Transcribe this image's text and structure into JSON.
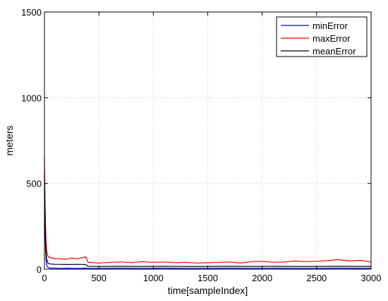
{
  "chart_data": {
    "type": "line",
    "xlabel": "time[sampleIndex]",
    "ylabel": "meters",
    "xlim": [
      0,
      3000
    ],
    "ylim": [
      0,
      1500
    ],
    "xticks": [
      0,
      500,
      1000,
      1500,
      2000,
      2500,
      3000
    ],
    "yticks": [
      0,
      500,
      1000,
      1500
    ],
    "grid": true,
    "legend_position": "top-right",
    "series": [
      {
        "name": "minError",
        "color": "#0000ff",
        "x": [
          0,
          5,
          10,
          15,
          20,
          30,
          40,
          60,
          100,
          150,
          200,
          300,
          380,
          400,
          500,
          700,
          900,
          1100,
          1300,
          1500,
          1700,
          1900,
          2100,
          2300,
          2500,
          2700,
          2900,
          3000
        ],
        "y": [
          460,
          250,
          120,
          55,
          25,
          12,
          8,
          6,
          6,
          5,
          6,
          5,
          6,
          5,
          5,
          6,
          5,
          6,
          5,
          5,
          6,
          5,
          6,
          5,
          5,
          6,
          5,
          6
        ]
      },
      {
        "name": "maxError",
        "color": "#ff0000",
        "x": [
          0,
          5,
          10,
          15,
          20,
          30,
          40,
          60,
          100,
          150,
          200,
          250,
          300,
          350,
          380,
          400,
          450,
          500,
          600,
          700,
          800,
          900,
          1000,
          1100,
          1200,
          1300,
          1400,
          1500,
          1600,
          1700,
          1800,
          1900,
          2000,
          2100,
          2200,
          2300,
          2400,
          2500,
          2600,
          2700,
          2800,
          2900,
          3000
        ],
        "y": [
          650,
          420,
          260,
          160,
          110,
          80,
          70,
          66,
          62,
          60,
          58,
          65,
          60,
          68,
          72,
          40,
          38,
          36,
          40,
          42,
          38,
          44,
          40,
          42,
          38,
          40,
          36,
          38,
          40,
          42,
          36,
          44,
          46,
          40,
          42,
          48,
          44,
          46,
          50,
          56,
          48,
          52,
          42
        ]
      },
      {
        "name": "meanError",
        "color": "#000000",
        "x": [
          0,
          5,
          10,
          15,
          20,
          30,
          40,
          60,
          100,
          150,
          200,
          300,
          380,
          400,
          500,
          700,
          900,
          1100,
          1300,
          1500,
          1700,
          1900,
          2100,
          2300,
          2500,
          2700,
          2900,
          3000
        ],
        "y": [
          560,
          320,
          180,
          100,
          60,
          38,
          32,
          30,
          28,
          28,
          27,
          28,
          27,
          17,
          16,
          17,
          16,
          17,
          16,
          16,
          17,
          16,
          17,
          16,
          16,
          17,
          16,
          17
        ]
      }
    ]
  }
}
